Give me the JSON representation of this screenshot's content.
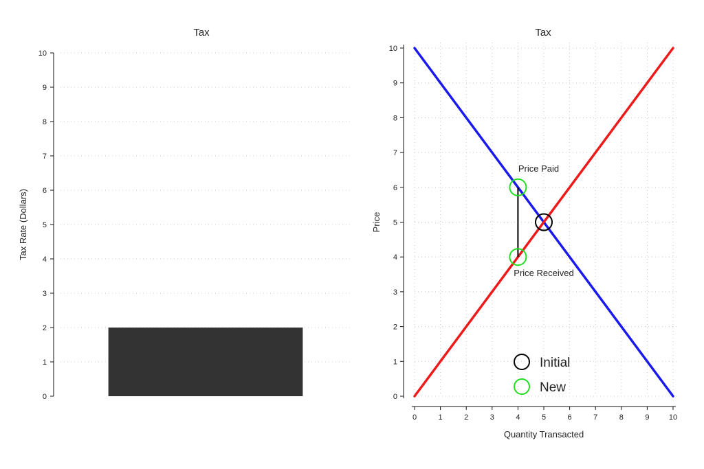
{
  "chart_data": [
    {
      "type": "bar",
      "title": "Tax",
      "xlabel": "",
      "ylabel": "Tax Rate (Dollars)",
      "ylim": [
        0,
        10
      ],
      "yticks": [
        0,
        1,
        2,
        3,
        4,
        5,
        6,
        7,
        8,
        9,
        10
      ],
      "categories": [
        ""
      ],
      "values": [
        2
      ],
      "bar_color": "#333333",
      "grid": true
    },
    {
      "type": "line",
      "title": "Tax",
      "xlabel": "Quantity Transacted",
      "ylabel": "Price",
      "xlim": [
        0,
        10
      ],
      "ylim": [
        0,
        10
      ],
      "xticks": [
        0,
        1,
        2,
        3,
        4,
        5,
        6,
        7,
        8,
        9,
        10
      ],
      "yticks": [
        0,
        1,
        2,
        3,
        4,
        5,
        6,
        7,
        8,
        9,
        10
      ],
      "grid": true,
      "series": [
        {
          "color": "#1a1aee",
          "points": [
            [
              0,
              10
            ],
            [
              10,
              0
            ]
          ]
        },
        {
          "color": "#ee1a1a",
          "points": [
            [
              0,
              0
            ],
            [
              10,
              10
            ]
          ]
        }
      ],
      "tax_wedge": {
        "x": 4,
        "y_from": 4,
        "y_to": 6,
        "color": "#000000"
      },
      "markers": [
        {
          "kind": "initial",
          "x": 5,
          "y": 5,
          "color": "#000000"
        },
        {
          "kind": "new",
          "x": 4,
          "y": 6,
          "color": "#22dd22"
        },
        {
          "kind": "new",
          "x": 4,
          "y": 4,
          "color": "#22dd22"
        }
      ],
      "annotations": [
        {
          "text": "Price Paid",
          "x": 4.8,
          "y": 6.45
        },
        {
          "text": "Price Received",
          "x": 5.0,
          "y": 3.45
        }
      ],
      "legend": {
        "placement": "bottom-center",
        "entries": [
          {
            "label": "Initial",
            "color": "#000000"
          },
          {
            "label": "New",
            "color": "#22dd22"
          }
        ]
      }
    }
  ]
}
